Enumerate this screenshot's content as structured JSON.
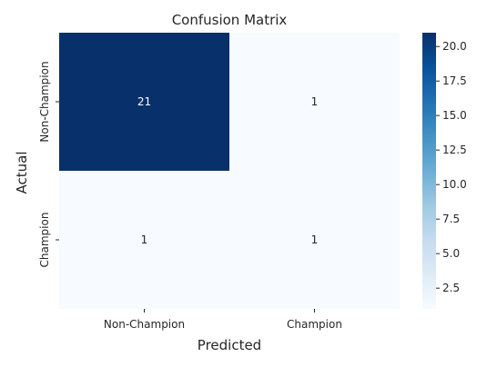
{
  "chart_data": {
    "type": "heatmap",
    "title": "Confusion Matrix",
    "xlabel": "Predicted",
    "ylabel": "Actual",
    "x_categories": [
      "Non-Champion",
      "Champion"
    ],
    "y_categories": [
      "Non-Champion",
      "Champion"
    ],
    "values": [
      [
        21,
        1
      ],
      [
        1,
        1
      ]
    ],
    "colormap": "Blues",
    "vmin": 1,
    "vmax": 21,
    "colorbar_ticks": [
      "2.5",
      "5.0",
      "7.5",
      "10.0",
      "12.5",
      "15.0",
      "17.5",
      "20.0"
    ],
    "colors": {
      "low": "#f7fbff",
      "high": "#08306b",
      "annotation_dark_cell": "#ffffff",
      "annotation_light_cell": "#262626"
    }
  }
}
